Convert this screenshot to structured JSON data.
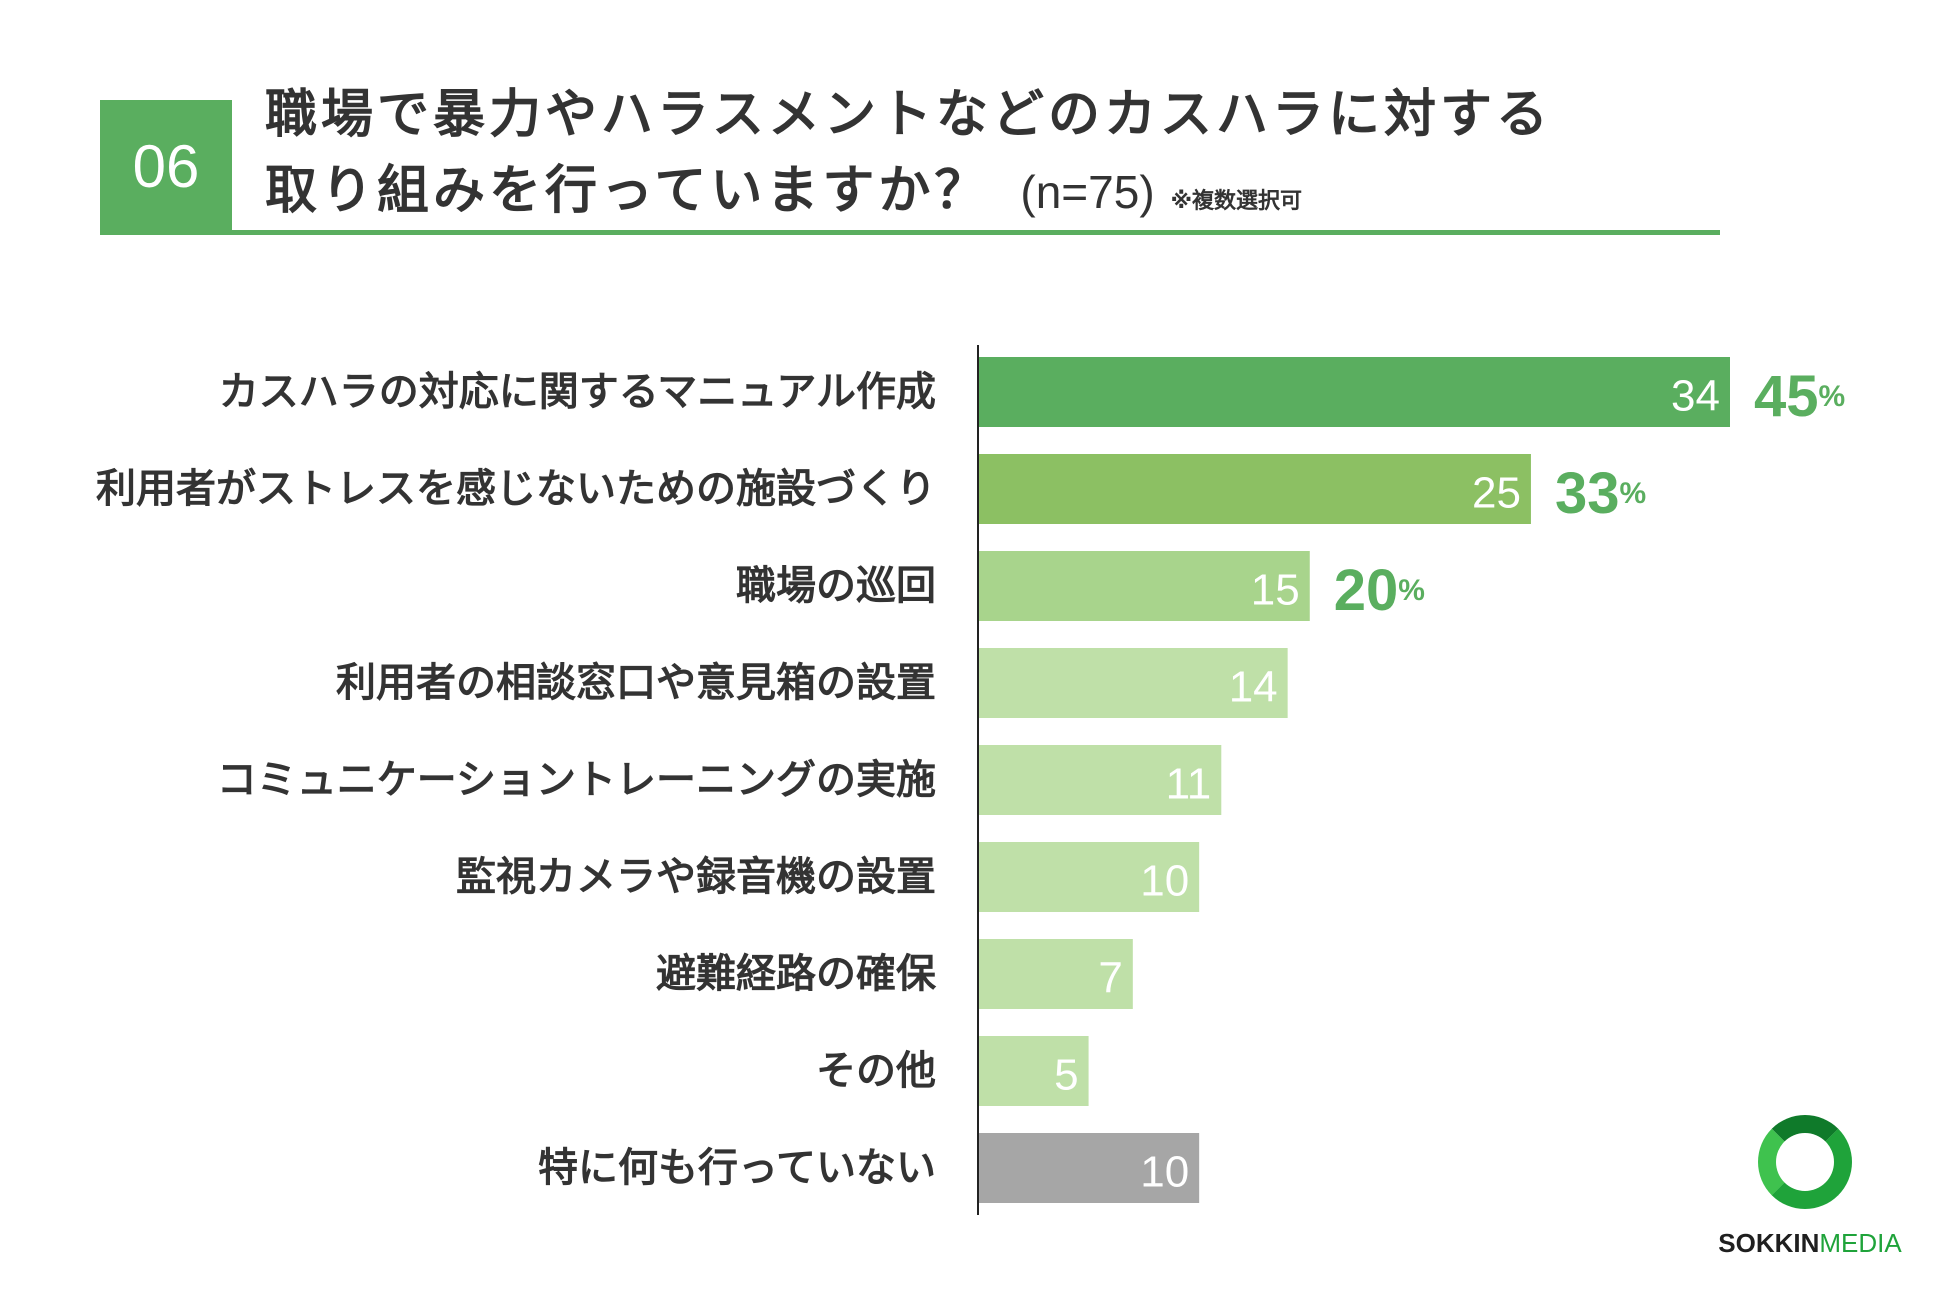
{
  "header": {
    "badge": "06",
    "title_line1": "職場で暴力やハラスメントなどのカスハラに対する",
    "title_line2": "取り組みを行っていますか？",
    "n_label": "(n=75)",
    "note": "※複数選択可"
  },
  "chart_data": {
    "type": "bar",
    "orientation": "horizontal",
    "categories": [
      "カスハラの対応に関するマニュアル作成",
      "利用者がストレスを感じないための施設づくり",
      "職場の巡回",
      "利用者の相談窓口や意見箱の設置",
      "コミュニケーショントレーニングの実施",
      "監視カメラや録音機の設置",
      "避難経路の確保",
      "その他",
      "特に何も行っていない"
    ],
    "values": [
      34,
      25,
      15,
      14,
      11,
      10,
      7,
      5,
      10
    ],
    "percent_labels": [
      "45",
      "33",
      "20",
      "",
      "",
      "",
      "",
      "",
      ""
    ],
    "percent_unit": "%",
    "colors": [
      "#5aae5f",
      "#8cc063",
      "#a8d48c",
      "#bfe0a8",
      "#bfe0a8",
      "#bfe0a8",
      "#bfe0a8",
      "#bfe0a8",
      "#a6a6a6"
    ],
    "value_label_color": "#ffffff",
    "percent_color": "#5aae5f",
    "xlim": [
      0,
      34
    ]
  },
  "logo": {
    "text_main": "SOKKIN",
    "text_accent": "MEDIA"
  }
}
